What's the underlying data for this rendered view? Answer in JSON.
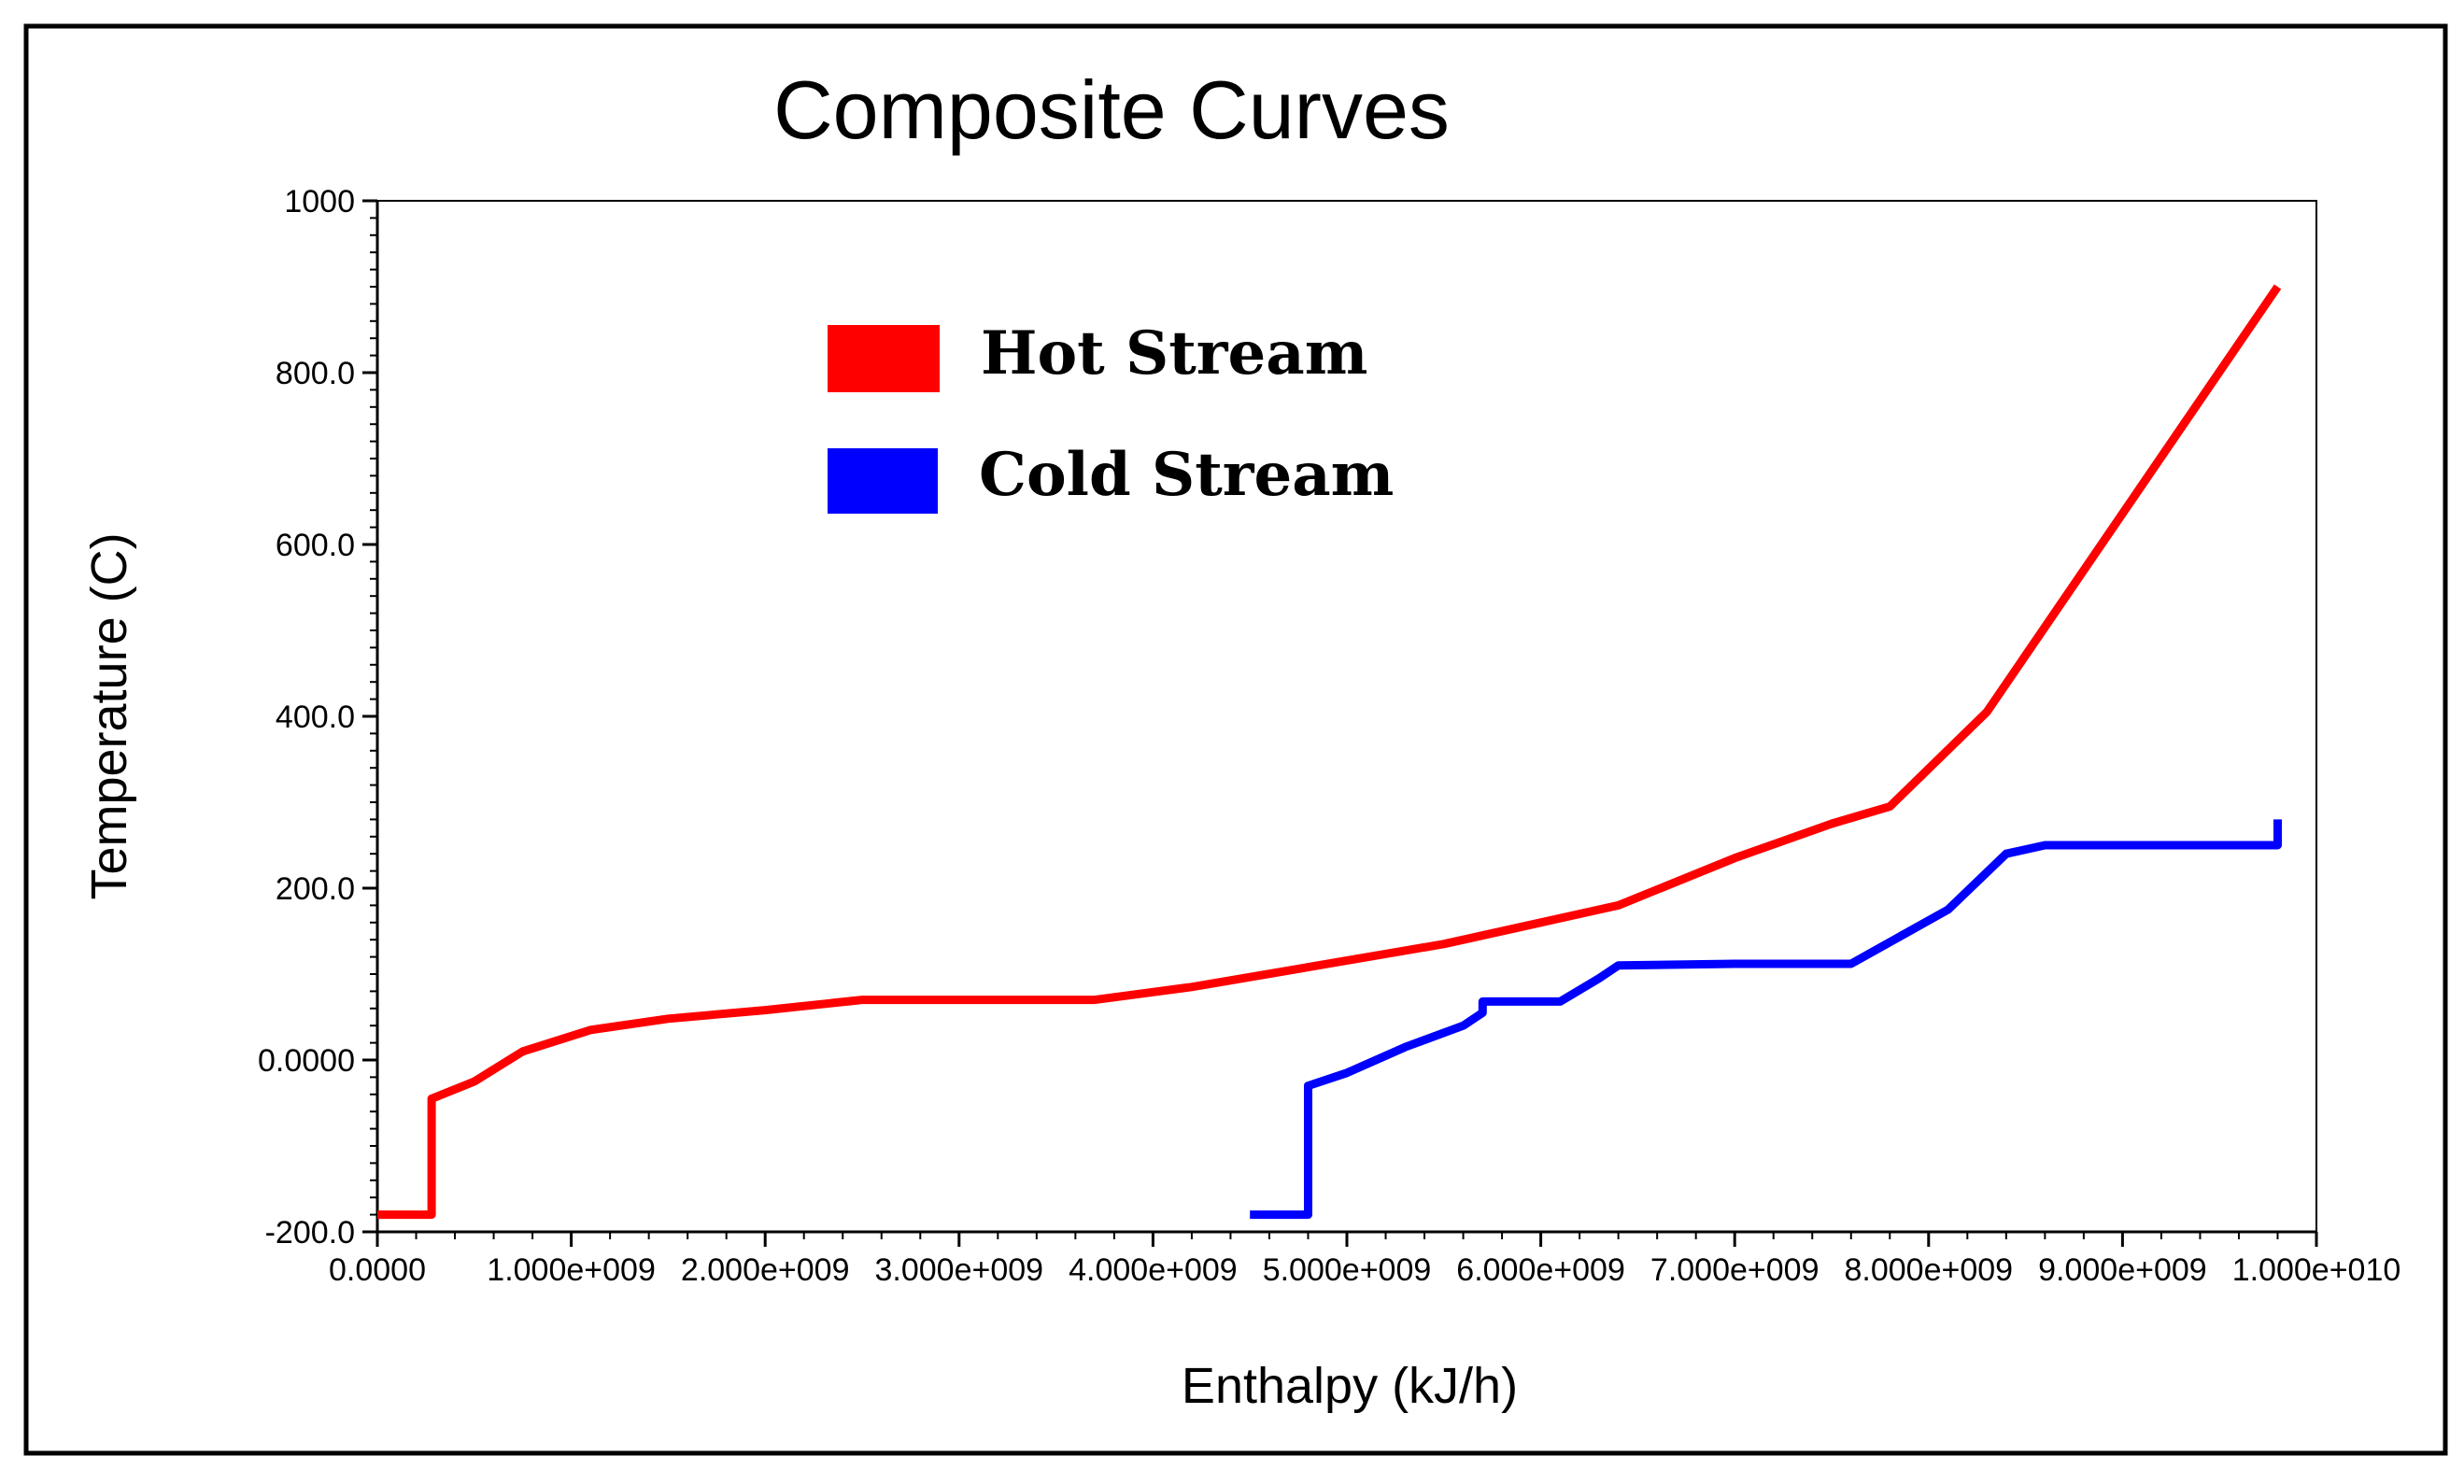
{
  "colors": {
    "hot": "#ff0000",
    "cold": "#0000ff",
    "axis": "#000000",
    "frame": "#000000",
    "background": "#ffffff"
  },
  "chart_data": {
    "type": "line",
    "title": "Composite Curves",
    "xlabel": "Enthalpy (kJ/h)",
    "ylabel": "Temperature (C)",
    "xlim": [
      0,
      10000000000
    ],
    "ylim": [
      -200,
      1000
    ],
    "y_ticks": [
      -200,
      0,
      200,
      400,
      600,
      800,
      1000
    ],
    "y_tick_labels": [
      "-200.0",
      "0.0000",
      "200.0",
      "400.0",
      "600.0",
      "800.0",
      "1000"
    ],
    "x_ticks": [
      0,
      1000000000,
      2000000000,
      3000000000,
      4000000000,
      5000000000,
      6000000000,
      7000000000,
      8000000000,
      9000000000,
      10000000000
    ],
    "x_tick_labels": [
      "0.0000",
      "1.000e+009",
      "2.000e+009",
      "3.000e+009",
      "4.000e+009",
      "5.000e+009",
      "6.000e+009",
      "7.000e+009",
      "8.000e+009",
      "9.000e+009",
      "1.000e+010"
    ],
    "grid": false,
    "legend": {
      "position": "top-left",
      "entries": [
        "Hot Stream",
        "Cold Stream"
      ]
    },
    "series": [
      {
        "name": "Hot Stream",
        "color": "#ff0000",
        "x": [
          0,
          280000000,
          280000000,
          500000000,
          750000000,
          1100000000,
          1500000000,
          2000000000,
          2500000000,
          3000000000,
          3700000000,
          4200000000,
          4800000000,
          5500000000,
          6000000000,
          6400000000,
          7000000000,
          7500000000,
          7800000000,
          8300000000,
          9800000000
        ],
        "values": [
          -180,
          -180,
          -45,
          -25,
          10,
          35,
          48,
          58,
          70,
          70,
          70,
          85,
          108,
          135,
          160,
          180,
          235,
          275,
          295,
          405,
          900
        ]
      },
      {
        "name": "Cold Stream",
        "color": "#0000ff",
        "x": [
          4500000000,
          4800000000,
          4800000000,
          5000000000,
          5300000000,
          5600000000,
          5700000000,
          5700000000,
          6100000000,
          6300000000,
          6400000000,
          7000000000,
          7600000000,
          8100000000,
          8400000000,
          8600000000,
          9800000000,
          9800000000
        ],
        "values": [
          -180,
          -180,
          -30,
          -15,
          15,
          40,
          55,
          68,
          68,
          95,
          110,
          112,
          112,
          175,
          240,
          250,
          250,
          280
        ]
      }
    ]
  }
}
